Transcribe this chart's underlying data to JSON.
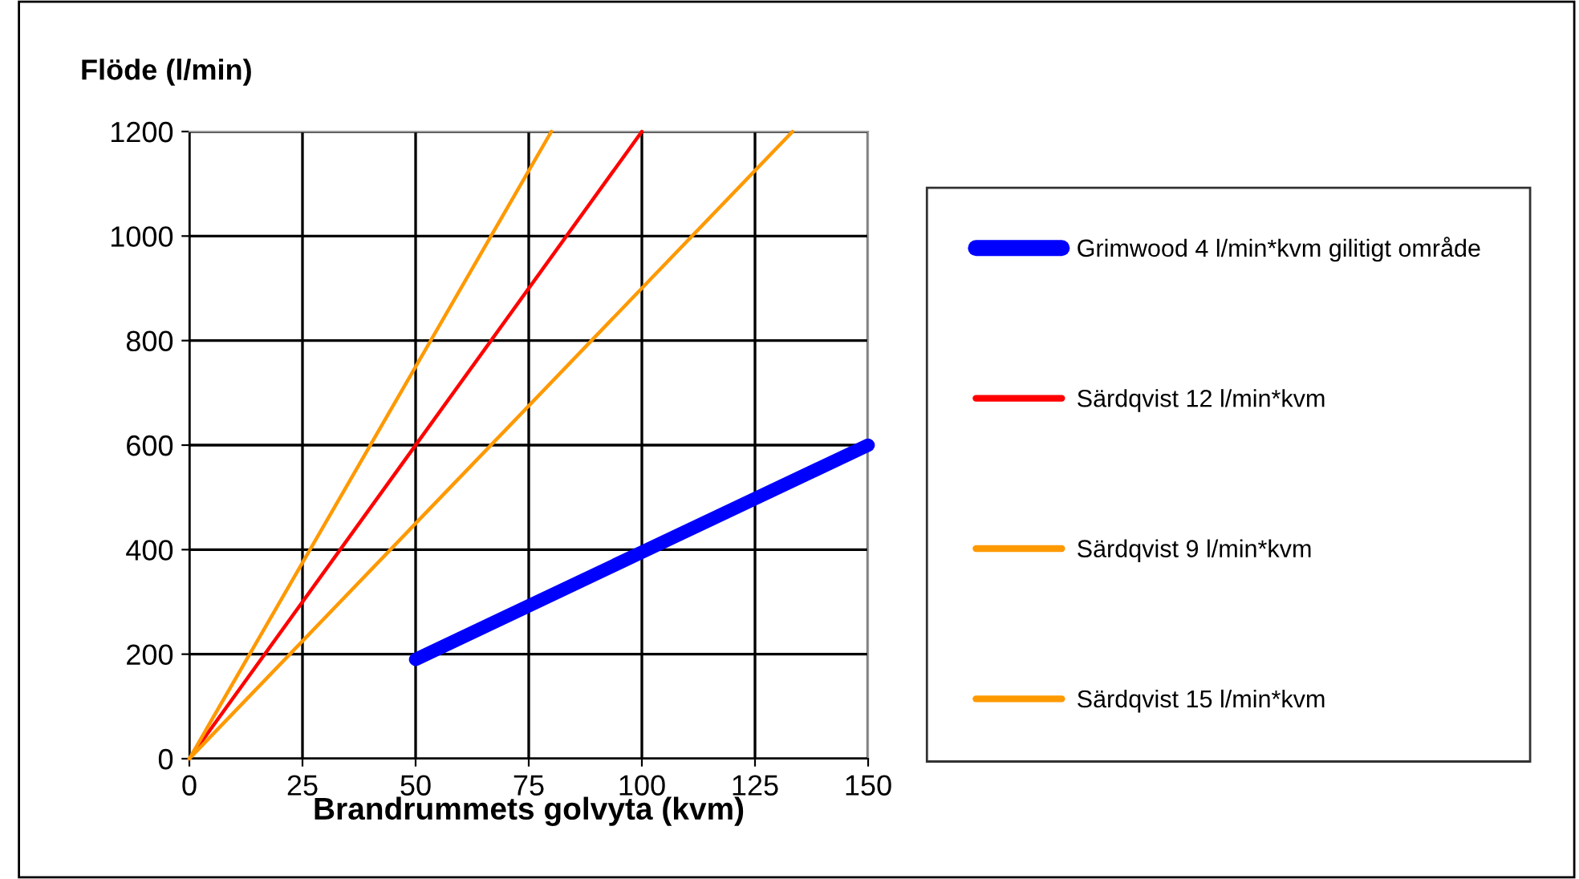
{
  "chart_data": {
    "type": "line",
    "ylabel": "Flöde (l/min)",
    "xlabel": "Brandrummets golvyta (kvm)",
    "xlim": [
      0,
      150
    ],
    "xticks": [
      0,
      25,
      50,
      75,
      100,
      125,
      150
    ],
    "ylim": [
      0,
      1200
    ],
    "yticks": [
      0,
      200,
      400,
      600,
      800,
      1000,
      1200
    ],
    "grid": true,
    "legend": "right",
    "marker": "none",
    "line_style": "solid",
    "series": [
      {
        "name": "Grimwood 4 l/min*kvm gilitigt område",
        "color": "#0000ff",
        "x": [
          50,
          100,
          150
        ],
        "values": [
          190,
          395,
          600
        ]
      },
      {
        "name": "Särdqvist 12 l/min*kvm",
        "color": "#ff0000",
        "x": [
          0,
          100
        ],
        "values": [
          0,
          1200
        ]
      },
      {
        "name": "Särdqvist 9 l/min*kvm",
        "color": "#ff9900",
        "x": [
          0,
          133.3
        ],
        "values": [
          0,
          1200
        ]
      },
      {
        "name": "Särdqvist 15 l/min*kvm",
        "color": "#ff9900",
        "x": [
          0,
          80
        ],
        "values": [
          0,
          1200
        ]
      }
    ]
  }
}
